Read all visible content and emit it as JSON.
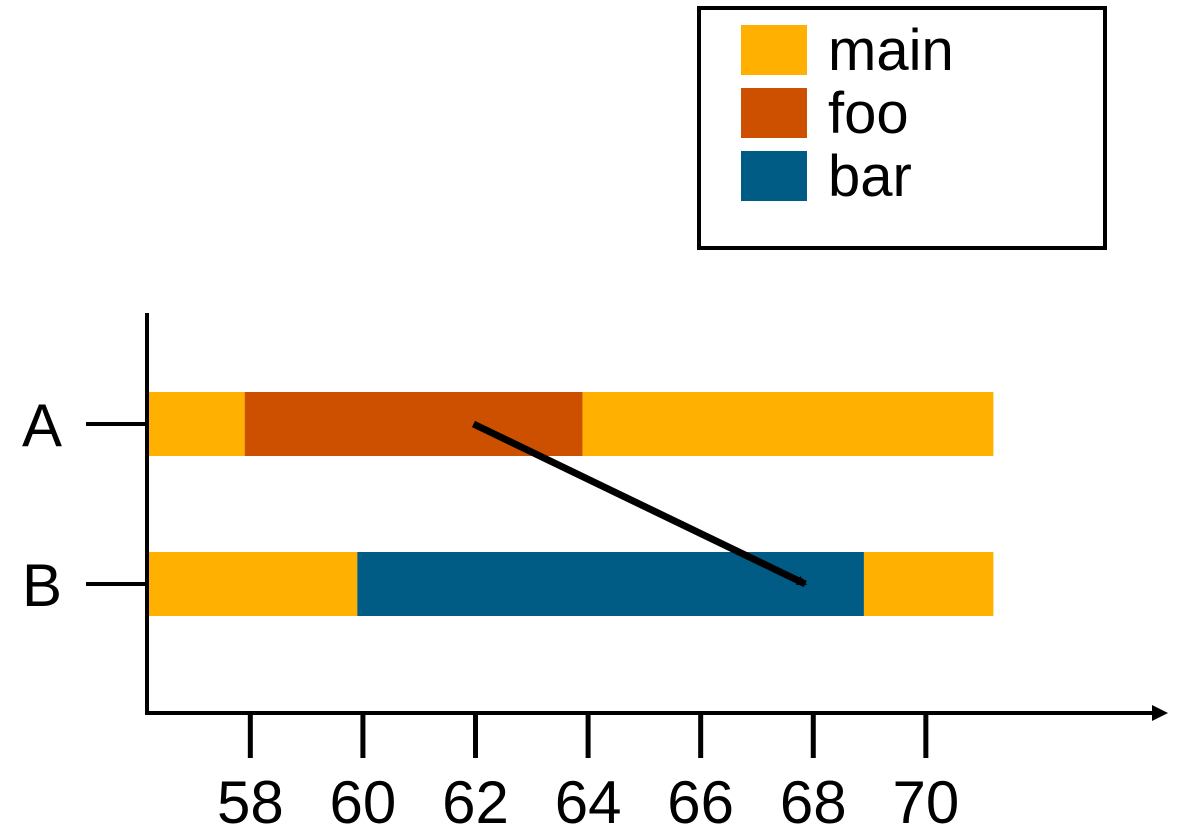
{
  "chart_data": {
    "type": "bar",
    "orientation": "horizontal-timeline",
    "title": "",
    "xlabel": "",
    "ylabel": "",
    "categories": [
      "A",
      "B"
    ],
    "x_ticks": [
      58,
      60,
      62,
      64,
      66,
      68,
      70
    ],
    "xlim": [
      56.2,
      73.2
    ],
    "series": [
      {
        "name": "main",
        "color": "#FFB000"
      },
      {
        "name": "foo",
        "color": "#CC5000"
      },
      {
        "name": "bar",
        "color": "#005C84"
      }
    ],
    "segments": [
      {
        "category": "A",
        "series": "main",
        "start": 56.2,
        "end": 57.9
      },
      {
        "category": "A",
        "series": "foo",
        "start": 57.9,
        "end": 63.9
      },
      {
        "category": "A",
        "series": "main",
        "start": 63.9,
        "end": 71.2
      },
      {
        "category": "B",
        "series": "main",
        "start": 56.2,
        "end": 59.9
      },
      {
        "category": "B",
        "series": "bar",
        "start": 59.9,
        "end": 68.9
      },
      {
        "category": "B",
        "series": "main",
        "start": 68.9,
        "end": 71.2
      }
    ],
    "annotation_arrow": {
      "from": {
        "category": "A",
        "x": 62
      },
      "to": {
        "category": "B",
        "x": 68
      }
    },
    "legend_position": "top-right",
    "grid": false
  }
}
